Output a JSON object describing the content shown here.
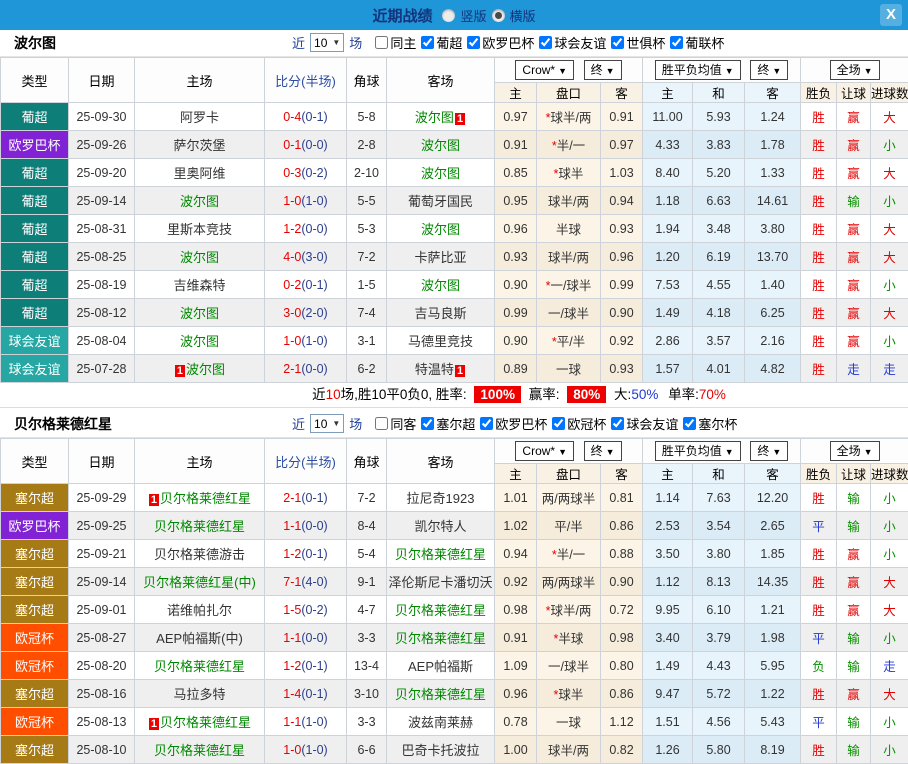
{
  "ui": {
    "arrow": "▼",
    "check_near": "近",
    "check_games": "场"
  },
  "titlebar": {
    "title": "近期战绩",
    "radios": [
      {
        "label": "竖版",
        "selected": false
      },
      {
        "label": "横版",
        "selected": true
      }
    ],
    "close_icon": "X",
    "bar_color": "#1e96d7"
  },
  "columns": {
    "type": "类型",
    "date": "日期",
    "home": "主场",
    "score": "比分(半场)",
    "corner": "角球",
    "away": "客场",
    "odds_home": "主",
    "handicap": "盘口",
    "odds_away": "客",
    "avg_home": "主",
    "avg_draw": "和",
    "avg_away": "客",
    "result_wdl": "胜负",
    "result_handicap": "让球",
    "result_goals": "进球数",
    "dd_company": "Crow*",
    "dd_final1": "终",
    "dd_avg": "胜平负均值",
    "dd_final2": "终",
    "dd_full": "全场"
  },
  "league_colors": {
    "葡超": "#0e7e79",
    "欧罗巴杯": "#8222d5",
    "球会友谊": "#27a7a3",
    "塞尔超": "#a67b16",
    "欧冠杯": "#ff4e00"
  },
  "sections": [
    {
      "team": "波尔图",
      "filter": {
        "near": "近",
        "games_value": "10",
        "games_suffix": "场",
        "same_label": "同主",
        "same_checked": false,
        "leagues": [
          {
            "label": "葡超",
            "checked": true
          },
          {
            "label": "欧罗巴杯",
            "checked": true
          },
          {
            "label": "球会友谊",
            "checked": true
          },
          {
            "label": "世俱杯",
            "checked": true
          },
          {
            "label": "葡联杯",
            "checked": true
          }
        ]
      },
      "rows": [
        {
          "league": "葡超",
          "date": "25-09-30",
          "home": "阿罗卡",
          "homeF": false,
          "homeB": "",
          "score": "0-4",
          "half": "(0-1)",
          "corner": "5-8",
          "away": "波尔图",
          "awayF": true,
          "awayB": "1",
          "o1": "0.97",
          "hc": "*球半/两",
          "o2": "0.91",
          "a1": "11.00",
          "a2": "5.93",
          "a3": "1.24",
          "w": "胜",
          "wc": "r",
          "l": "赢",
          "lc": "r",
          "g": "大",
          "gc": "r"
        },
        {
          "league": "欧罗巴杯",
          "date": "25-09-26",
          "home": "萨尔茨堡",
          "homeF": false,
          "homeB": "",
          "score": "0-1",
          "half": "(0-0)",
          "corner": "2-8",
          "away": "波尔图",
          "awayF": true,
          "awayB": "",
          "o1": "0.91",
          "hc": "*半/一",
          "o2": "0.97",
          "a1": "4.33",
          "a2": "3.83",
          "a3": "1.78",
          "w": "胜",
          "wc": "r",
          "l": "赢",
          "lc": "r",
          "g": "小",
          "gc": "g"
        },
        {
          "league": "葡超",
          "date": "25-09-20",
          "home": "里奥阿维",
          "homeF": false,
          "homeB": "",
          "score": "0-3",
          "half": "(0-2)",
          "corner": "2-10",
          "away": "波尔图",
          "awayF": true,
          "awayB": "",
          "o1": "0.85",
          "hc": "*球半",
          "o2": "1.03",
          "a1": "8.40",
          "a2": "5.20",
          "a3": "1.33",
          "w": "胜",
          "wc": "r",
          "l": "赢",
          "lc": "r",
          "g": "大",
          "gc": "r"
        },
        {
          "league": "葡超",
          "date": "25-09-14",
          "home": "波尔图",
          "homeF": true,
          "homeB": "",
          "score": "1-0",
          "half": "(1-0)",
          "corner": "5-5",
          "away": "葡萄牙国民",
          "awayF": false,
          "awayB": "",
          "o1": "0.95",
          "hc": "球半/两",
          "o2": "0.94",
          "a1": "1.18",
          "a2": "6.63",
          "a3": "14.61",
          "w": "胜",
          "wc": "r",
          "l": "输",
          "lc": "g",
          "g": "小",
          "gc": "g"
        },
        {
          "league": "葡超",
          "date": "25-08-31",
          "home": "里斯本竞技",
          "homeF": false,
          "homeB": "",
          "score": "1-2",
          "half": "(0-0)",
          "corner": "5-3",
          "away": "波尔图",
          "awayF": true,
          "awayB": "",
          "o1": "0.96",
          "hc": "半球",
          "o2": "0.93",
          "a1": "1.94",
          "a2": "3.48",
          "a3": "3.80",
          "w": "胜",
          "wc": "r",
          "l": "赢",
          "lc": "r",
          "g": "大",
          "gc": "r"
        },
        {
          "league": "葡超",
          "date": "25-08-25",
          "home": "波尔图",
          "homeF": true,
          "homeB": "",
          "score": "4-0",
          "half": "(3-0)",
          "corner": "7-2",
          "away": "卡萨比亚",
          "awayF": false,
          "awayB": "",
          "o1": "0.93",
          "hc": "球半/两",
          "o2": "0.96",
          "a1": "1.20",
          "a2": "6.19",
          "a3": "13.70",
          "w": "胜",
          "wc": "r",
          "l": "赢",
          "lc": "r",
          "g": "大",
          "gc": "r"
        },
        {
          "league": "葡超",
          "date": "25-08-19",
          "home": "吉维森特",
          "homeF": false,
          "homeB": "",
          "score": "0-2",
          "half": "(0-1)",
          "corner": "1-5",
          "away": "波尔图",
          "awayF": true,
          "awayB": "",
          "o1": "0.90",
          "hc": "*一/球半",
          "o2": "0.99",
          "a1": "7.53",
          "a2": "4.55",
          "a3": "1.40",
          "w": "胜",
          "wc": "r",
          "l": "赢",
          "lc": "r",
          "g": "小",
          "gc": "g"
        },
        {
          "league": "葡超",
          "date": "25-08-12",
          "home": "波尔图",
          "homeF": true,
          "homeB": "",
          "score": "3-0",
          "half": "(2-0)",
          "corner": "7-4",
          "away": "吉马良斯",
          "awayF": false,
          "awayB": "",
          "o1": "0.99",
          "hc": "一/球半",
          "o2": "0.90",
          "a1": "1.49",
          "a2": "4.18",
          "a3": "6.25",
          "w": "胜",
          "wc": "r",
          "l": "赢",
          "lc": "r",
          "g": "大",
          "gc": "r"
        },
        {
          "league": "球会友谊",
          "date": "25-08-04",
          "home": "波尔图",
          "homeF": true,
          "homeB": "",
          "score": "1-0",
          "half": "(1-0)",
          "corner": "3-1",
          "away": "马德里竞技",
          "awayF": false,
          "awayB": "",
          "o1": "0.90",
          "hc": "*平/半",
          "o2": "0.92",
          "a1": "2.86",
          "a2": "3.57",
          "a3": "2.16",
          "w": "胜",
          "wc": "r",
          "l": "赢",
          "lc": "r",
          "g": "小",
          "gc": "g"
        },
        {
          "league": "球会友谊",
          "date": "25-07-28",
          "home": "波尔图",
          "homeF": true,
          "homeB": "1",
          "score": "2-1",
          "half": "(0-0)",
          "corner": "6-2",
          "away": "特温特",
          "awayF": false,
          "awayB": "1",
          "o1": "0.89",
          "hc": "一球",
          "o2": "0.93",
          "a1": "1.57",
          "a2": "4.01",
          "a3": "4.82",
          "w": "胜",
          "wc": "r",
          "l": "走",
          "lc": "b",
          "g": "走",
          "gc": "b"
        }
      ],
      "summary": {
        "near": "近",
        "near_n": "10",
        "mid": "场,胜10平0负0, 胜率:",
        "win_rate": "100%",
        "profit_label": "赢率:",
        "profit_rate": "80%",
        "big_label": "大:",
        "big_rate": "50%",
        "single_label": "单率:",
        "single_rate": "70%"
      }
    },
    {
      "team": "贝尔格莱德红星",
      "filter": {
        "near": "近",
        "games_value": "10",
        "games_suffix": "场",
        "same_label": "同客",
        "same_checked": false,
        "leagues": [
          {
            "label": "塞尔超",
            "checked": true
          },
          {
            "label": "欧罗巴杯",
            "checked": true
          },
          {
            "label": "欧冠杯",
            "checked": true
          },
          {
            "label": "球会友谊",
            "checked": true
          },
          {
            "label": "塞尔杯",
            "checked": true
          }
        ]
      },
      "rows": [
        {
          "league": "塞尔超",
          "date": "25-09-29",
          "home": "贝尔格莱德红星",
          "homeF": true,
          "homeB": "1",
          "score": "2-1",
          "half": "(0-1)",
          "corner": "7-2",
          "away": "拉尼奇1923",
          "awayF": false,
          "awayB": "",
          "o1": "1.01",
          "hc": "两/两球半",
          "o2": "0.81",
          "a1": "1.14",
          "a2": "7.63",
          "a3": "12.20",
          "w": "胜",
          "wc": "r",
          "l": "输",
          "lc": "g",
          "g": "小",
          "gc": "g"
        },
        {
          "league": "欧罗巴杯",
          "date": "25-09-25",
          "home": "贝尔格莱德红星",
          "homeF": true,
          "homeB": "",
          "score": "1-1",
          "half": "(0-0)",
          "corner": "8-4",
          "away": "凯尔特人",
          "awayF": false,
          "awayB": "",
          "o1": "1.02",
          "hc": "平/半",
          "o2": "0.86",
          "a1": "2.53",
          "a2": "3.54",
          "a3": "2.65",
          "w": "平",
          "wc": "b",
          "l": "输",
          "lc": "g",
          "g": "小",
          "gc": "g"
        },
        {
          "league": "塞尔超",
          "date": "25-09-21",
          "home": "贝尔格莱德游击",
          "homeF": false,
          "homeB": "",
          "score": "1-2",
          "half": "(0-1)",
          "corner": "5-4",
          "away": "贝尔格莱德红星",
          "awayF": true,
          "awayB": "",
          "o1": "0.94",
          "hc": "*半/一",
          "o2": "0.88",
          "a1": "3.50",
          "a2": "3.80",
          "a3": "1.85",
          "w": "胜",
          "wc": "r",
          "l": "赢",
          "lc": "r",
          "g": "小",
          "gc": "g"
        },
        {
          "league": "塞尔超",
          "date": "25-09-14",
          "home": "贝尔格莱德红星(中)",
          "homeF": true,
          "homeB": "",
          "score": "7-1",
          "half": "(4-0)",
          "corner": "9-1",
          "away": "泽伦斯尼卡潘切沃",
          "awayF": false,
          "awayB": "",
          "o1": "0.92",
          "hc": "两/两球半",
          "o2": "0.90",
          "a1": "1.12",
          "a2": "8.13",
          "a3": "14.35",
          "w": "胜",
          "wc": "r",
          "l": "赢",
          "lc": "r",
          "g": "大",
          "gc": "r"
        },
        {
          "league": "塞尔超",
          "date": "25-09-01",
          "home": "诺维帕扎尔",
          "homeF": false,
          "homeB": "",
          "score": "1-5",
          "half": "(0-2)",
          "corner": "4-7",
          "away": "贝尔格莱德红星",
          "awayF": true,
          "awayB": "",
          "o1": "0.98",
          "hc": "*球半/两",
          "o2": "0.72",
          "a1": "9.95",
          "a2": "6.10",
          "a3": "1.21",
          "w": "胜",
          "wc": "r",
          "l": "赢",
          "lc": "r",
          "g": "大",
          "gc": "r"
        },
        {
          "league": "欧冠杯",
          "date": "25-08-27",
          "home": "AEP帕福斯(中)",
          "homeF": false,
          "homeB": "",
          "score": "1-1",
          "half": "(0-0)",
          "corner": "3-3",
          "away": "贝尔格莱德红星",
          "awayF": true,
          "awayB": "",
          "o1": "0.91",
          "hc": "*半球",
          "o2": "0.98",
          "a1": "3.40",
          "a2": "3.79",
          "a3": "1.98",
          "w": "平",
          "wc": "b",
          "l": "输",
          "lc": "g",
          "g": "小",
          "gc": "g"
        },
        {
          "league": "欧冠杯",
          "date": "25-08-20",
          "home": "贝尔格莱德红星",
          "homeF": true,
          "homeB": "",
          "score": "1-2",
          "half": "(0-1)",
          "corner": "13-4",
          "away": "AEP帕福斯",
          "awayF": false,
          "awayB": "",
          "o1": "1.09",
          "hc": "一/球半",
          "o2": "0.80",
          "a1": "1.49",
          "a2": "4.43",
          "a3": "5.95",
          "w": "负",
          "wc": "g",
          "l": "输",
          "lc": "g",
          "g": "走",
          "gc": "b"
        },
        {
          "league": "塞尔超",
          "date": "25-08-16",
          "home": "马拉多特",
          "homeF": false,
          "homeB": "",
          "score": "1-4",
          "half": "(0-1)",
          "corner": "3-10",
          "away": "贝尔格莱德红星",
          "awayF": true,
          "awayB": "",
          "o1": "0.96",
          "hc": "*球半",
          "o2": "0.86",
          "a1": "9.47",
          "a2": "5.72",
          "a3": "1.22",
          "w": "胜",
          "wc": "r",
          "l": "赢",
          "lc": "r",
          "g": "大",
          "gc": "r"
        },
        {
          "league": "欧冠杯",
          "date": "25-08-13",
          "home": "贝尔格莱德红星",
          "homeF": true,
          "homeB": "1",
          "score": "1-1",
          "half": "(1-0)",
          "corner": "3-3",
          "away": "波兹南莱赫",
          "awayF": false,
          "awayB": "",
          "o1": "0.78",
          "hc": "一球",
          "o2": "1.12",
          "a1": "1.51",
          "a2": "4.56",
          "a3": "5.43",
          "w": "平",
          "wc": "b",
          "l": "输",
          "lc": "g",
          "g": "小",
          "gc": "g"
        },
        {
          "league": "塞尔超",
          "date": "25-08-10",
          "home": "贝尔格莱德红星",
          "homeF": true,
          "homeB": "",
          "score": "1-0",
          "half": "(1-0)",
          "corner": "6-6",
          "away": "巴奇卡托波拉",
          "awayF": false,
          "awayB": "",
          "o1": "1.00",
          "hc": "球半/两",
          "o2": "0.82",
          "a1": "1.26",
          "a2": "5.80",
          "a3": "8.19",
          "w": "胜",
          "wc": "r",
          "l": "输",
          "lc": "g",
          "g": "小",
          "gc": "g"
        }
      ]
    }
  ]
}
